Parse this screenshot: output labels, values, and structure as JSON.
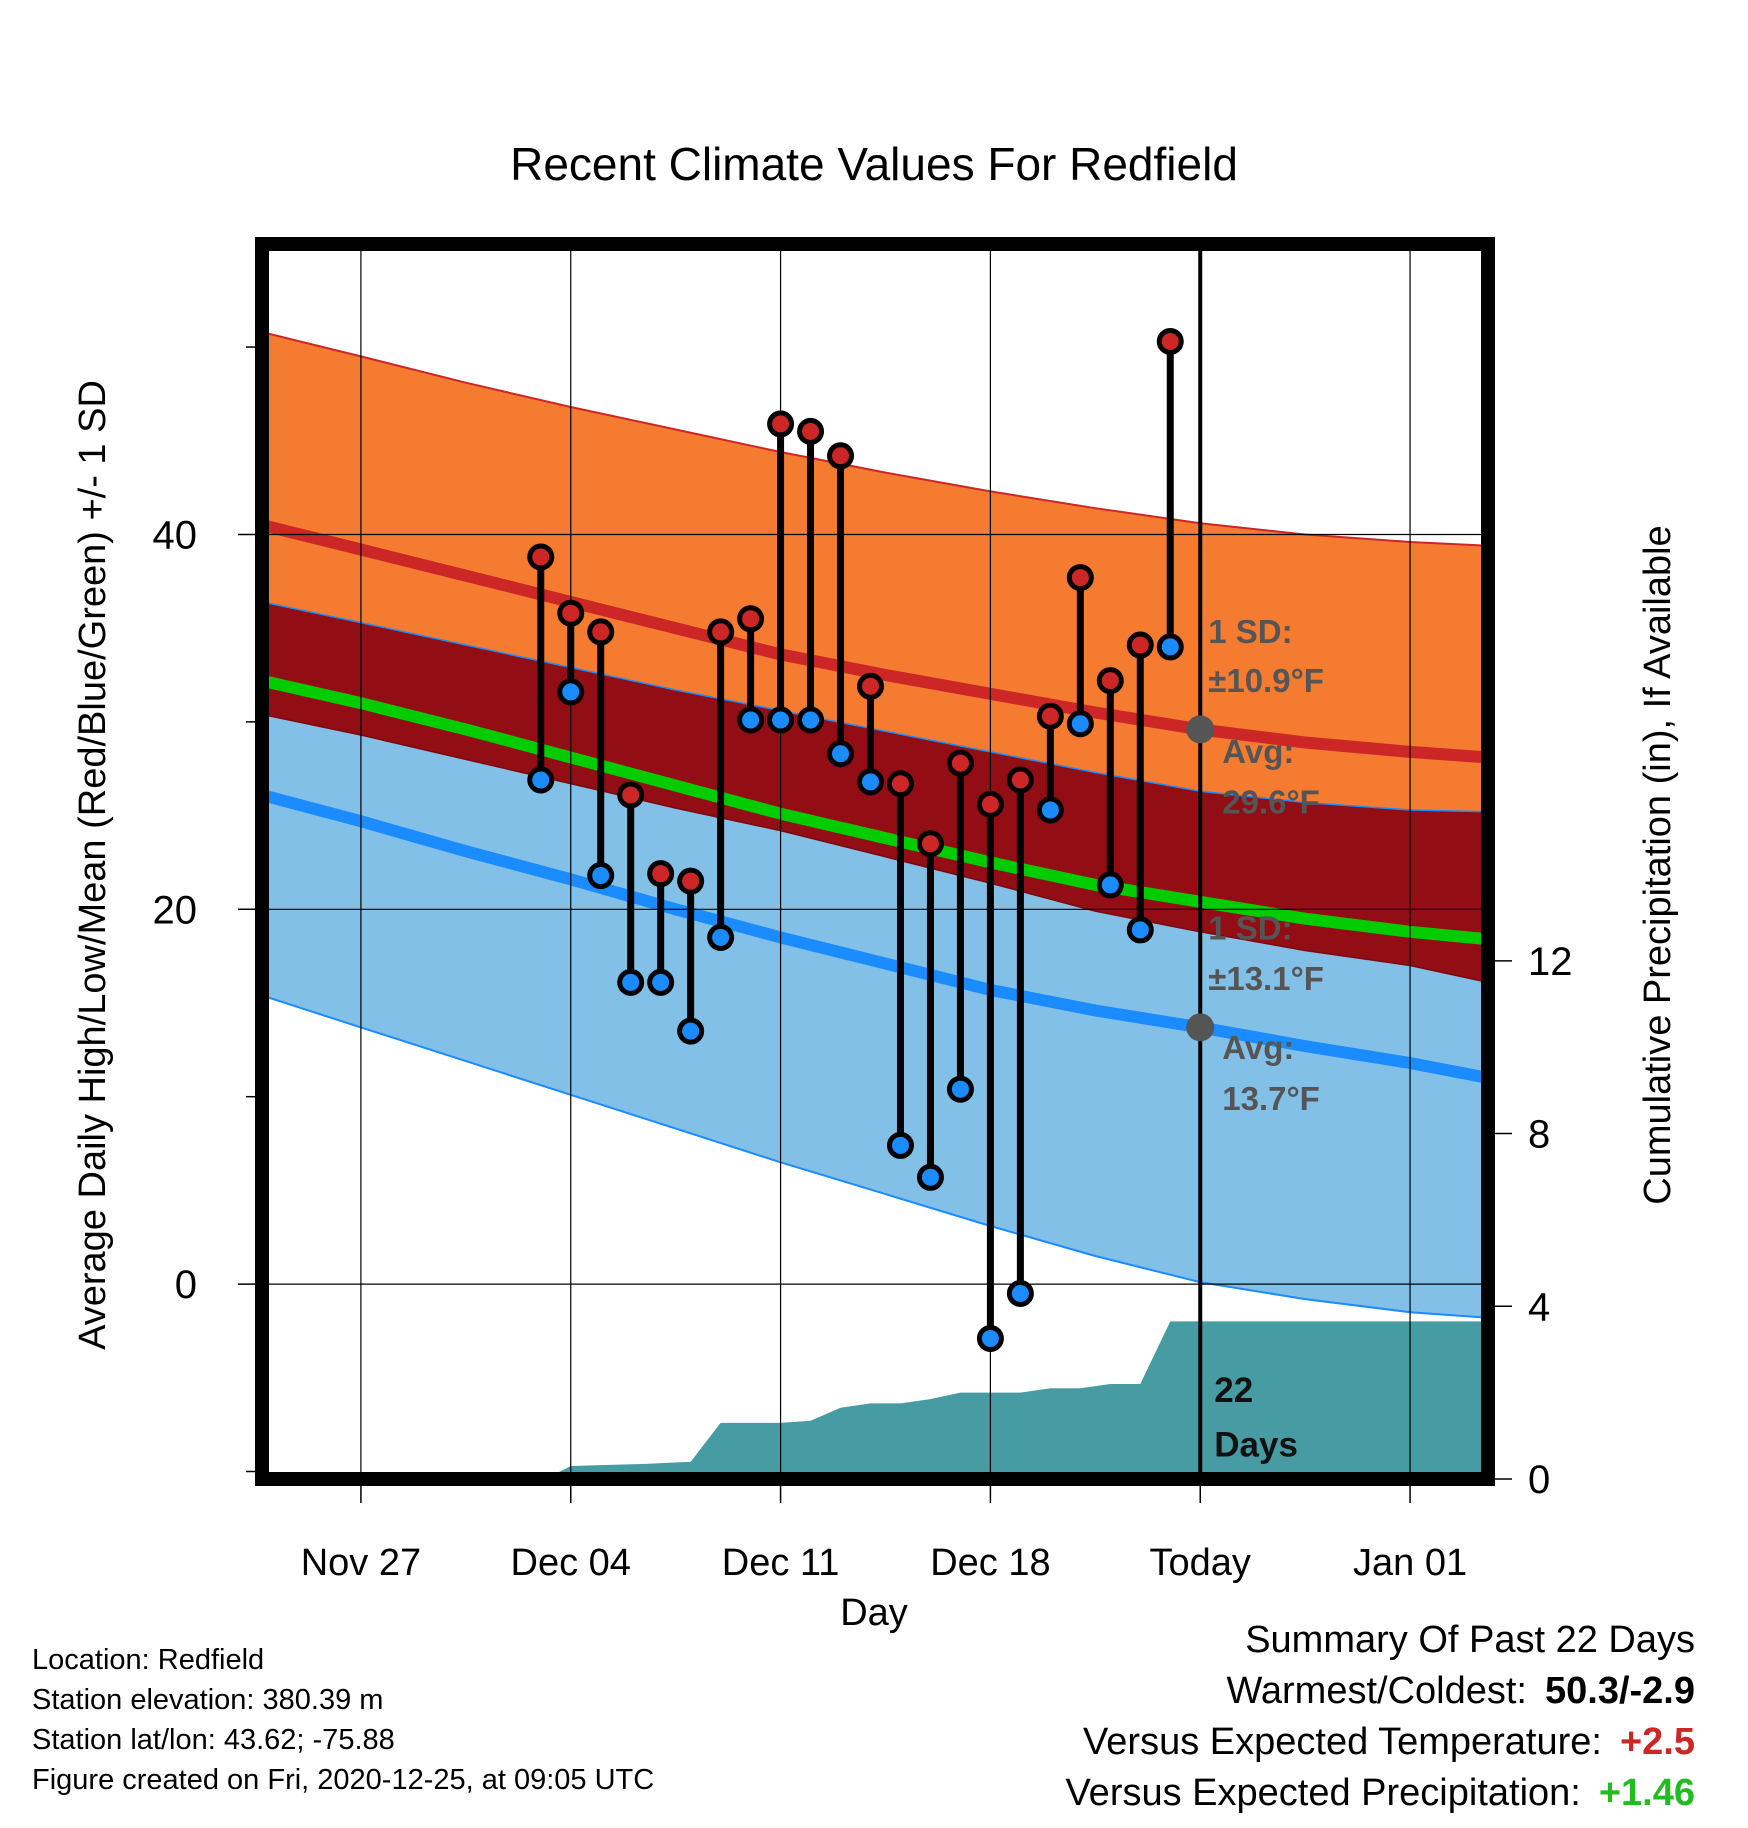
{
  "chart_data": {
    "type": "line",
    "title": "Recent Climate Values For Redfield",
    "xlabel": "Day",
    "ylabel": "Average Daily High/Low/Mean (Red/Blue/Green) +/- 1 SD",
    "y2label": "Cumulative Precipitation (in), If Available",
    "x_tick_labels": [
      "Nov 27",
      "Dec 04",
      "Dec 11",
      "Dec 18",
      "Today",
      "Jan 01"
    ],
    "x_tick_days": [
      -28,
      -21,
      -14,
      -7,
      0,
      7
    ],
    "x_range_days": [
      -31.3,
      9.6
    ],
    "y_ticks": [
      0,
      20,
      40
    ],
    "y_range": [
      -10.4,
      55.5
    ],
    "y2_ticks": [
      0,
      4,
      8,
      12
    ],
    "y2_range": [
      0,
      28.6
    ],
    "grid": true,
    "today_day": 0,
    "normal_high_days": [
      -31.3,
      -28,
      -24.5,
      -21,
      -17.5,
      -14,
      -10.5,
      -7,
      -3.5,
      0,
      3.5,
      7,
      9.6
    ],
    "normal_high": [
      40.5,
      39.2,
      37.8,
      36.4,
      35.0,
      33.6,
      32.5,
      31.5,
      30.5,
      29.6,
      28.9,
      28.4,
      28.1
    ],
    "normal_high_plus_sd": [
      50.8,
      49.5,
      48.1,
      46.8,
      45.6,
      44.4,
      43.3,
      42.3,
      41.4,
      40.6,
      40.0,
      39.6,
      39.4
    ],
    "normal_high_minus_sd": [
      36.4,
      35.3,
      34.1,
      32.9,
      31.7,
      30.6,
      29.5,
      28.4,
      27.3,
      26.3,
      25.7,
      25.3,
      25.2
    ],
    "normal_mean": [
      32.2,
      31.0,
      29.6,
      28.1,
      26.6,
      25.1,
      23.8,
      22.5,
      21.3,
      20.4,
      19.5,
      18.8,
      18.4
    ],
    "normal_low": [
      26.1,
      24.7,
      23.1,
      21.6,
      20.0,
      18.5,
      17.1,
      15.7,
      14.6,
      13.7,
      12.7,
      11.8,
      11.0
    ],
    "normal_low_plus_sd": [
      30.4,
      29.3,
      28.0,
      26.7,
      25.4,
      24.2,
      22.8,
      21.4,
      19.9,
      18.8,
      17.8,
      17.0,
      16.1
    ],
    "normal_low_minus_sd": [
      15.4,
      13.7,
      11.9,
      10.1,
      8.3,
      6.5,
      4.8,
      3.1,
      1.5,
      0.1,
      -0.8,
      -1.5,
      -1.8
    ],
    "daily_days": [
      -22,
      -21,
      -20,
      -19,
      -18,
      -17,
      -16,
      -15,
      -14,
      -13,
      -12,
      -11,
      -10,
      -9,
      -8,
      -7,
      -6,
      -5,
      -4,
      -3,
      -2,
      -1
    ],
    "daily_high": [
      38.8,
      35.8,
      34.8,
      26.1,
      21.9,
      21.5,
      34.8,
      35.5,
      45.9,
      45.5,
      44.2,
      31.9,
      26.7,
      23.5,
      27.8,
      25.6,
      26.9,
      30.3,
      37.7,
      32.2,
      34.1,
      50.3
    ],
    "daily_low": [
      26.9,
      31.6,
      21.8,
      16.1,
      16.1,
      13.5,
      18.5,
      30.1,
      30.1,
      30.1,
      28.3,
      26.8,
      7.4,
      5.7,
      10.4,
      -2.9,
      -0.5,
      25.3,
      29.9,
      21.3,
      18.9,
      34.0
    ],
    "precip_days": [
      -31.3,
      -22.5,
      -21.7,
      -21,
      -18.5,
      -17,
      -16,
      -15,
      -14,
      -13,
      -12,
      -11,
      -10,
      -9,
      -8,
      -7,
      -6,
      -5,
      -4,
      -3,
      -2,
      -1,
      0,
      9.6
    ],
    "precip_cum": [
      0,
      0,
      0.05,
      0.3,
      0.35,
      0.4,
      1.3,
      1.3,
      1.3,
      1.35,
      1.65,
      1.75,
      1.75,
      1.85,
      2.0,
      2.0,
      2.0,
      2.1,
      2.1,
      2.2,
      2.2,
      3.65,
      3.65,
      3.65
    ],
    "colors": {
      "high_band": "#f47b30",
      "high_line": "#cc2626",
      "mean_band": "#930d14",
      "mean_line": "#00cc00",
      "low_band": "#82c0e8",
      "low_line": "#1a8cff",
      "precip": "#469ca2",
      "annotation": "#555555"
    },
    "annotations": {
      "high_sd_label": "1 SD:",
      "high_sd_value": "±10.9°F",
      "high_avg_label": "Avg:",
      "high_avg_value": "29.6°F",
      "low_sd_label": "1 SD:",
      "low_sd_value": "±13.1°F",
      "low_avg_label": "Avg:",
      "low_avg_value": "13.7°F",
      "days_count": "22",
      "days_word": "Days"
    }
  },
  "footer": {
    "location": "Location: Redfield",
    "elevation": "Station elevation: 380.39 m",
    "latlon": "Station lat/lon: 43.62; -75.88",
    "created": "Figure created on Fri, 2020-12-25, at 09:05 UTC"
  },
  "summary": {
    "title": "Summary Of Past 22 Days",
    "warm_cold_label": "Warmest/Coldest:",
    "warm_cold_value": "50.3/-2.9",
    "temp_label": "Versus Expected Temperature:",
    "temp_value": "+2.5",
    "temp_color": "#cc2626",
    "precip_label": "Versus Expected Precipitation:",
    "precip_value": "+1.46",
    "precip_color": "#22bb22"
  }
}
